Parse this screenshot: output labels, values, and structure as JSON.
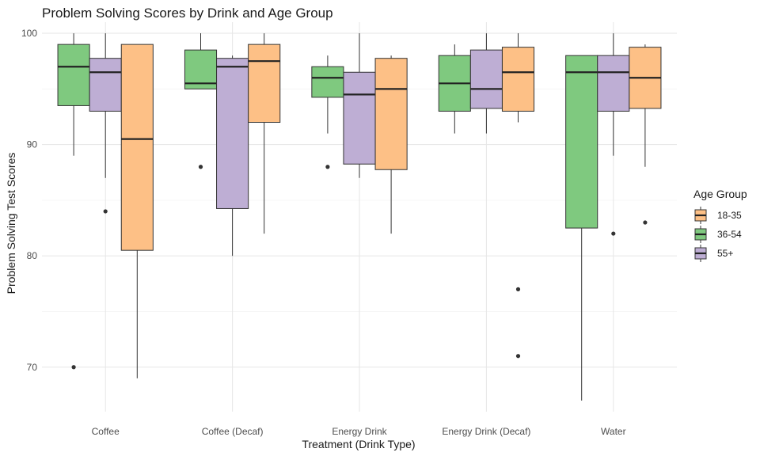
{
  "chart_data": {
    "type": "boxplot",
    "title": "Problem Solving Scores by Drink and Age Group",
    "xlabel": "Treatment (Drink Type)",
    "ylabel": "Problem Solving Test Scores",
    "ylim": [
      66,
      101
    ],
    "yticks": [
      70,
      80,
      90,
      100
    ],
    "grid": true,
    "legend": {
      "title": "Age Group",
      "position": "right",
      "entries": [
        {
          "key": "18-35",
          "label": "18-35",
          "color": "#fdc086"
        },
        {
          "key": "36-54",
          "label": "36-54",
          "color": "#7fc97f"
        },
        {
          "key": "55+",
          "label": "55+",
          "color": "#beaed4"
        }
      ]
    },
    "dodge_order": [
      "36-54",
      "55+",
      "18-35"
    ],
    "categories": [
      "Coffee",
      "Coffee (Decaf)",
      "Energy Drink",
      "Energy Drink (Decaf)",
      "Water"
    ],
    "groups": [
      {
        "category": "Coffee",
        "boxes": [
          {
            "group": "36-54",
            "min": 89,
            "q1": 93.5,
            "median": 97,
            "q3": 99,
            "max": 100,
            "outliers": [
              70
            ]
          },
          {
            "group": "55+",
            "min": 87,
            "q1": 93,
            "median": 96.5,
            "q3": 97.75,
            "max": 100,
            "outliers": [
              84
            ]
          },
          {
            "group": "18-35",
            "min": 69,
            "q1": 80.5,
            "median": 90.5,
            "q3": 99,
            "max": 99,
            "outliers": []
          }
        ]
      },
      {
        "category": "Coffee (Decaf)",
        "boxes": [
          {
            "group": "36-54",
            "min": 95,
            "q1": 95,
            "median": 95.5,
            "q3": 98.5,
            "max": 100,
            "outliers": [
              88
            ]
          },
          {
            "group": "55+",
            "min": 80,
            "q1": 84.25,
            "median": 97,
            "q3": 97.75,
            "max": 98,
            "outliers": []
          },
          {
            "group": "18-35",
            "min": 82,
            "q1": 92,
            "median": 97.5,
            "q3": 99,
            "max": 100,
            "outliers": []
          }
        ]
      },
      {
        "category": "Energy Drink",
        "boxes": [
          {
            "group": "36-54",
            "min": 91,
            "q1": 94.25,
            "median": 96,
            "q3": 97,
            "max": 98,
            "outliers": [
              88
            ]
          },
          {
            "group": "55+",
            "min": 87,
            "q1": 88.25,
            "median": 94.5,
            "q3": 96.5,
            "max": 100,
            "outliers": []
          },
          {
            "group": "18-35",
            "min": 82,
            "q1": 87.75,
            "median": 95,
            "q3": 97.75,
            "max": 98,
            "outliers": []
          }
        ]
      },
      {
        "category": "Energy Drink (Decaf)",
        "boxes": [
          {
            "group": "36-54",
            "min": 91,
            "q1": 93,
            "median": 95.5,
            "q3": 98,
            "max": 99,
            "outliers": []
          },
          {
            "group": "55+",
            "min": 91,
            "q1": 93.25,
            "median": 95,
            "q3": 98.5,
            "max": 100,
            "outliers": []
          },
          {
            "group": "18-35",
            "min": 92,
            "q1": 93,
            "median": 96.5,
            "q3": 98.75,
            "max": 100,
            "outliers": [
              77,
              71
            ]
          }
        ]
      },
      {
        "category": "Water",
        "boxes": [
          {
            "group": "36-54",
            "min": 67,
            "q1": 82.5,
            "median": 96.5,
            "q3": 98,
            "max": 98,
            "outliers": []
          },
          {
            "group": "55+",
            "min": 89,
            "q1": 93,
            "median": 96.5,
            "q3": 98,
            "max": 100,
            "outliers": [
              82
            ]
          },
          {
            "group": "18-35",
            "min": 88,
            "q1": 93.25,
            "median": 96,
            "q3": 98.75,
            "max": 99,
            "outliers": [
              83
            ]
          }
        ]
      }
    ]
  }
}
